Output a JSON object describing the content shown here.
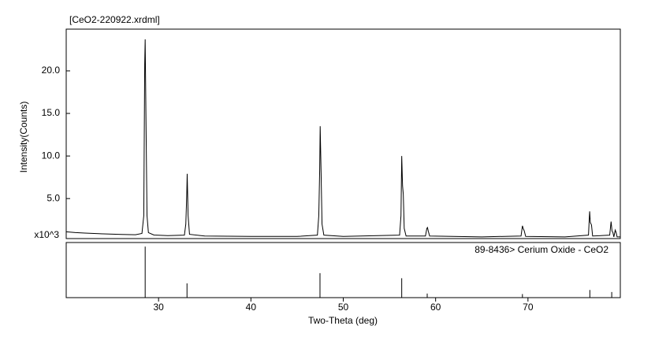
{
  "chart_data": [
    {
      "type": "line",
      "title": "[CeO2-220922.xrdml]",
      "y_label": "Intensity(Counts)",
      "y_multiplier": "x10^3",
      "color": "#000000",
      "xlim": [
        20,
        80
      ],
      "ylim": [
        0.3,
        24.9
      ],
      "yticks": [
        {
          "value": 5,
          "label": "5.0"
        },
        {
          "value": 10,
          "label": "10.0"
        },
        {
          "value": 15,
          "label": "15.0"
        },
        {
          "value": 20,
          "label": "20.0"
        }
      ],
      "x": [
        20,
        21,
        22,
        24,
        26,
        27.5,
        28.2,
        28.4,
        28.5,
        28.55,
        28.65,
        28.75,
        28.9,
        29.5,
        31,
        32.8,
        32.95,
        33.05,
        33.1,
        33.2,
        33.35,
        35,
        40,
        45,
        47.2,
        47.35,
        47.45,
        47.5,
        47.6,
        47.7,
        47.9,
        50,
        56.1,
        56.25,
        56.33,
        56.42,
        56.5,
        56.6,
        56.8,
        58.9,
        59.05,
        59.12,
        59.2,
        59.35,
        65,
        69.25,
        69.4,
        69.48,
        69.6,
        69.75,
        74,
        76.55,
        76.68,
        76.75,
        76.88,
        77.0,
        78.85,
        79.0,
        79.1,
        79.2,
        79.3,
        79.45,
        79.55,
        79.65,
        80
      ],
      "values": [
        1.1,
        1.0,
        0.95,
        0.85,
        0.78,
        0.75,
        0.9,
        3,
        20.8,
        23.7,
        13,
        3,
        1.0,
        0.72,
        0.65,
        0.7,
        2,
        5.3,
        7.9,
        3,
        0.8,
        0.6,
        0.55,
        0.55,
        0.7,
        3,
        8.5,
        13.5,
        8,
        2,
        0.7,
        0.55,
        0.7,
        3,
        10.0,
        6.5,
        5.5,
        1.5,
        0.6,
        0.6,
        1.5,
        1.6,
        1.2,
        0.6,
        0.5,
        0.6,
        1.8,
        1.5,
        1.2,
        0.55,
        0.5,
        0.7,
        3.5,
        2.2,
        1.9,
        0.6,
        0.7,
        2.3,
        1.2,
        1.0,
        0.5,
        1.3,
        1.0,
        0.5,
        0.5
      ]
    },
    {
      "type": "stem",
      "title": "89-8436> Cerium Oxide - CeO2",
      "x_label": "Two-Theta (deg)",
      "color": "#000000",
      "xlim": [
        20,
        80
      ],
      "ylim": [
        0,
        108
      ],
      "xticks": [
        30,
        40,
        50,
        60,
        70
      ],
      "x": [
        28.55,
        33.08,
        47.48,
        56.33,
        59.09,
        69.4,
        76.7,
        79.07
      ],
      "values": [
        100,
        28,
        48,
        38,
        8,
        7,
        15,
        11
      ]
    }
  ]
}
